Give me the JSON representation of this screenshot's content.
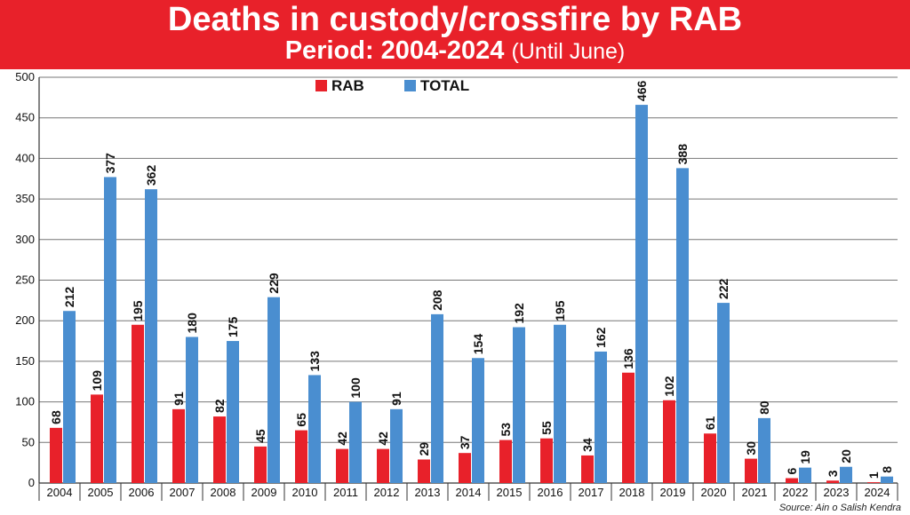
{
  "header": {
    "title": "Deaths in custody/crossfire by RAB",
    "subtitle_main": "Period: 2004-2024",
    "subtitle_note": "(Until June)"
  },
  "source": "Source: Ain o Salish Kendra",
  "colors": {
    "header_bg": "#e8212a",
    "rab": "#e8212a",
    "total": "#4a8ed0",
    "grid": "#777777"
  },
  "chart_data": {
    "type": "bar",
    "title": "Deaths in custody/crossfire by RAB",
    "subtitle": "Period: 2004-2024 (Until June)",
    "categories": [
      "2004",
      "2005",
      "2006",
      "2007",
      "2008",
      "2009",
      "2010",
      "2011",
      "2012",
      "2013",
      "2014",
      "2015",
      "2016",
      "2017",
      "2018",
      "2019",
      "2020",
      "2021",
      "2022",
      "2023",
      "2024"
    ],
    "series": [
      {
        "name": "RAB",
        "values": [
          68,
          109,
          195,
          91,
          82,
          45,
          65,
          42,
          42,
          29,
          37,
          53,
          55,
          34,
          136,
          102,
          61,
          30,
          6,
          3,
          1
        ]
      },
      {
        "name": "TOTAL",
        "values": [
          212,
          377,
          362,
          180,
          175,
          229,
          133,
          100,
          91,
          208,
          154,
          192,
          195,
          162,
          466,
          388,
          222,
          80,
          19,
          20,
          8
        ]
      }
    ],
    "ylim": [
      0,
      500
    ],
    "yticks": [
      0,
      50,
      100,
      150,
      200,
      250,
      300,
      350,
      400,
      450,
      500
    ],
    "grid": true,
    "legend": "top-center",
    "xlabel": "",
    "ylabel": ""
  }
}
